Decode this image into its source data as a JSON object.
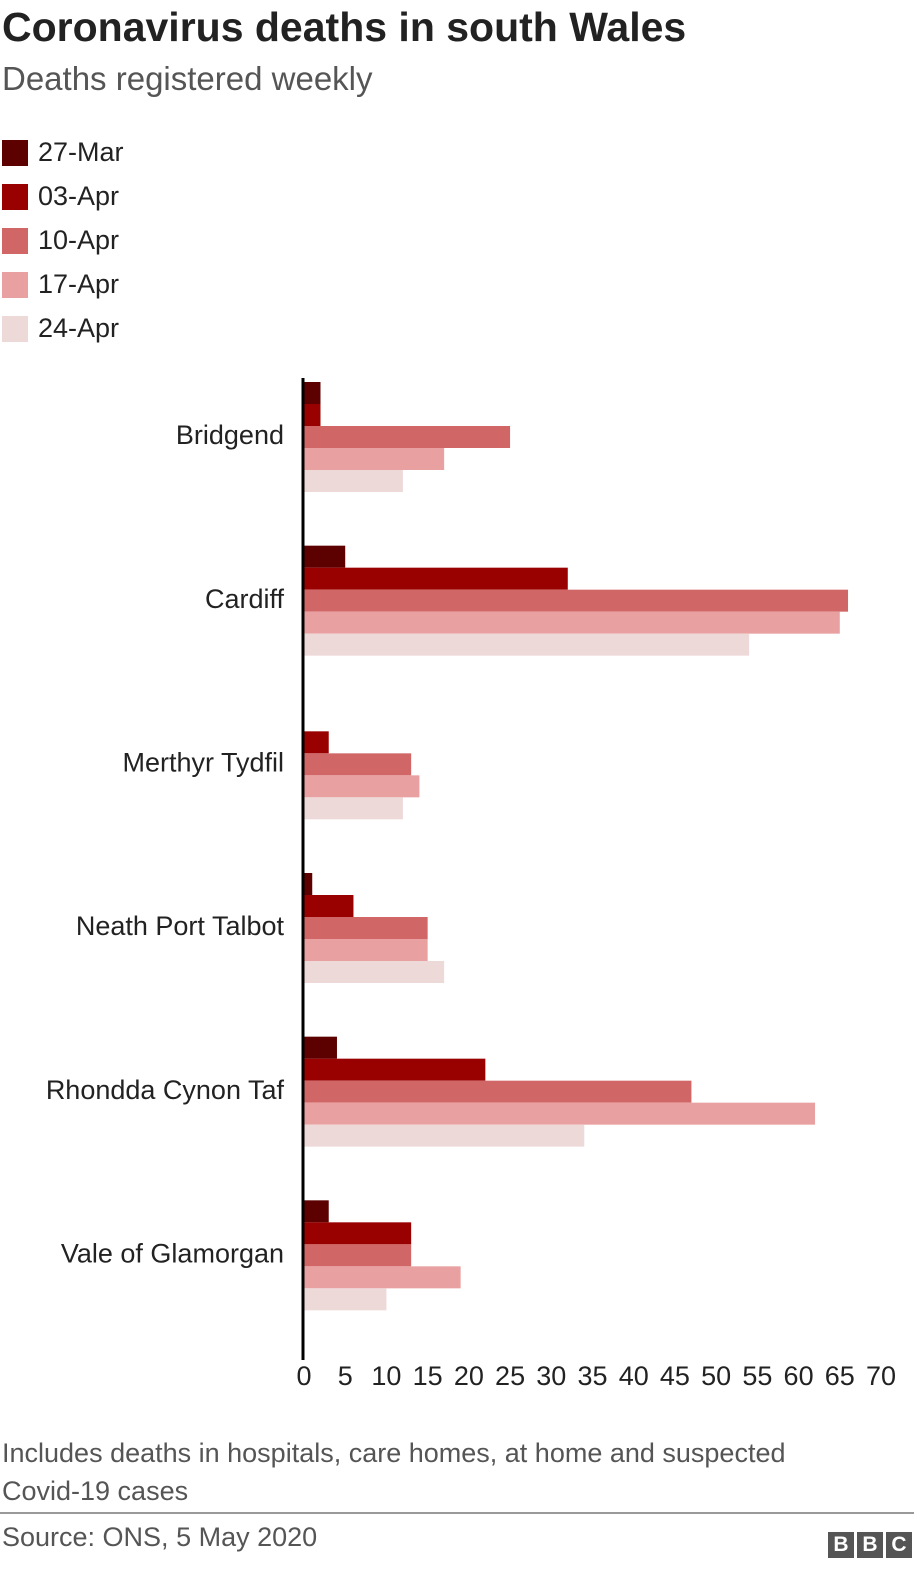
{
  "chart_data": {
    "type": "bar",
    "orientation": "horizontal",
    "title": "Coronavirus deaths in south Wales",
    "subtitle": "Deaths registered weekly",
    "categories": [
      "Bridgend",
      "Cardiff",
      "Merthyr Tydfil",
      "Neath Port Talbot",
      "Rhondda Cynon Taf",
      "Vale of Glamorgan"
    ],
    "series": [
      {
        "name": "27-Mar",
        "color": "#5c0000",
        "values": [
          2,
          5,
          0,
          1,
          4,
          3
        ]
      },
      {
        "name": "03-Apr",
        "color": "#990000",
        "values": [
          2,
          32,
          3,
          6,
          22,
          13
        ]
      },
      {
        "name": "10-Apr",
        "color": "#d16666",
        "values": [
          25,
          66,
          13,
          15,
          47,
          13
        ]
      },
      {
        "name": "17-Apr",
        "color": "#e8a0a0",
        "values": [
          17,
          65,
          14,
          15,
          62,
          19
        ]
      },
      {
        "name": "24-Apr",
        "color": "#eed9d9",
        "values": [
          12,
          54,
          12,
          17,
          34,
          10
        ]
      }
    ],
    "xlim": [
      0,
      70
    ],
    "xticks": [
      0,
      5,
      10,
      15,
      20,
      25,
      30,
      35,
      40,
      45,
      50,
      55,
      60,
      65,
      70
    ],
    "grid": false,
    "legend": "top-left",
    "note": "Includes deaths in hospitals, care homes, at home and suspected Covid-19 cases",
    "source": "Source: ONS, 5 May 2020",
    "logo": [
      "B",
      "B",
      "C"
    ]
  }
}
